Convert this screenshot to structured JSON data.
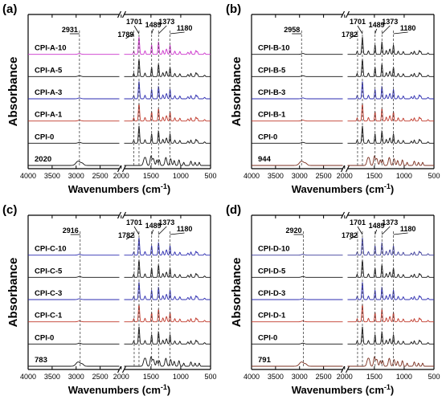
{
  "figure": {
    "axis_xlabel": "Wavenumbers",
    "axis_xlabel_unit_base": "(cm",
    "axis_xlabel_unit_exp": "-1",
    "axis_xlabel_unit_close": ")",
    "axis_ylabel": "Absorbance"
  },
  "colors": {
    "black": "#111111",
    "magenta": "#cc33cc",
    "blue": "#2b2bb0",
    "red": "#c0392b",
    "brown": "#7a2e1e",
    "navy": "#3b3b9a"
  },
  "chart_data": [
    {
      "type": "line",
      "panel_label": "(a)",
      "xlabel": "Wavenumbers (cm-1)",
      "ylabel": "Absorbance",
      "xticks": [
        4000,
        3500,
        3000,
        2500,
        2000,
        1500,
        1000,
        500
      ],
      "axis_break": [
        2100,
        1950
      ],
      "series": [
        {
          "name": "CPI-A-10",
          "color": "#cc33cc",
          "profile": "cpi"
        },
        {
          "name": "CPI-A-5",
          "color": "#111111",
          "profile": "cpi"
        },
        {
          "name": "CPI-A-3",
          "color": "#2b2bb0",
          "profile": "cpi"
        },
        {
          "name": "CPI-A-1",
          "color": "#c0392b",
          "profile": "cpi"
        },
        {
          "name": "CPI-0",
          "color": "#111111",
          "profile": "cpi"
        },
        {
          "name": "2020",
          "color": "#111111",
          "profile": "additive"
        }
      ],
      "annotations": [
        {
          "text": "2931",
          "x": 2931
        },
        {
          "text": "1789",
          "x": 1789
        },
        {
          "text": "1701",
          "x": 1701
        },
        {
          "text": "1489",
          "x": 1489
        },
        {
          "text": "1373",
          "x": 1373
        },
        {
          "text": "1180",
          "x": 1180
        }
      ]
    },
    {
      "type": "line",
      "panel_label": "(b)",
      "xlabel": "Wavenumbers (cm-1)",
      "ylabel": "Absorbance",
      "xticks": [
        4000,
        3500,
        3000,
        2500,
        2000,
        1500,
        1000,
        500
      ],
      "axis_break": [
        2100,
        1950
      ],
      "series": [
        {
          "name": "CPI-B-10",
          "color": "#111111",
          "profile": "cpi"
        },
        {
          "name": "CPI-B-5",
          "color": "#111111",
          "profile": "cpi"
        },
        {
          "name": "CPI-B-3",
          "color": "#2b2bb0",
          "profile": "cpi"
        },
        {
          "name": "CPI-B-1",
          "color": "#c0392b",
          "profile": "cpi"
        },
        {
          "name": "CPI-0",
          "color": "#111111",
          "profile": "cpi"
        },
        {
          "name": "944",
          "color": "#7a2e1e",
          "profile": "additive"
        }
      ],
      "annotations": [
        {
          "text": "2958",
          "x": 2958
        },
        {
          "text": "1782",
          "x": 1782
        },
        {
          "text": "1701",
          "x": 1701
        },
        {
          "text": "1489",
          "x": 1489
        },
        {
          "text": "1373",
          "x": 1373
        },
        {
          "text": "1180",
          "x": 1180
        }
      ]
    },
    {
      "type": "line",
      "panel_label": "(c)",
      "xlabel": "Wavenumbers (cm-1)",
      "ylabel": "Absorbance",
      "xticks": [
        4000,
        3500,
        3000,
        2500,
        2000,
        1500,
        1000,
        500
      ],
      "axis_break": [
        2100,
        1950
      ],
      "series": [
        {
          "name": "CPI-C-10",
          "color": "#2b2bb0",
          "profile": "cpi"
        },
        {
          "name": "CPI-C-5",
          "color": "#111111",
          "profile": "cpi"
        },
        {
          "name": "CPI-C-3",
          "color": "#2b2bb0",
          "profile": "cpi"
        },
        {
          "name": "CPI-C-1",
          "color": "#c0392b",
          "profile": "cpi"
        },
        {
          "name": "CPI-0",
          "color": "#111111",
          "profile": "cpi"
        },
        {
          "name": "783",
          "color": "#111111",
          "profile": "additive"
        }
      ],
      "annotations": [
        {
          "text": "2916",
          "x": 2916
        },
        {
          "text": "1782",
          "x": 1782
        },
        {
          "text": "1701",
          "x": 1701
        },
        {
          "text": "1489",
          "x": 1489
        },
        {
          "text": "1373",
          "x": 1373
        },
        {
          "text": "1180",
          "x": 1180
        }
      ]
    },
    {
      "type": "line",
      "panel_label": "(d)",
      "xlabel": "Wavenumbers (cm-1)",
      "ylabel": "Absorbance",
      "xticks": [
        4000,
        3500,
        3000,
        2500,
        2000,
        1500,
        1000,
        500
      ],
      "axis_break": [
        2100,
        1950
      ],
      "series": [
        {
          "name": "CPI-D-10",
          "color": "#3b3b9a",
          "profile": "cpi"
        },
        {
          "name": "CPI-D-5",
          "color": "#111111",
          "profile": "cpi"
        },
        {
          "name": "CPI-D-3",
          "color": "#2b2bb0",
          "profile": "cpi"
        },
        {
          "name": "CPI-D-1",
          "color": "#c0392b",
          "profile": "cpi"
        },
        {
          "name": "CPI-0",
          "color": "#111111",
          "profile": "cpi"
        },
        {
          "name": "791",
          "color": "#7a2e1e",
          "profile": "additive"
        }
      ],
      "annotations": [
        {
          "text": "2920",
          "x": 2920
        },
        {
          "text": "1782",
          "x": 1782
        },
        {
          "text": "1701",
          "x": 1701
        },
        {
          "text": "1489",
          "x": 1489
        },
        {
          "text": "1373",
          "x": 1373
        },
        {
          "text": "1180",
          "x": 1180
        }
      ]
    }
  ]
}
